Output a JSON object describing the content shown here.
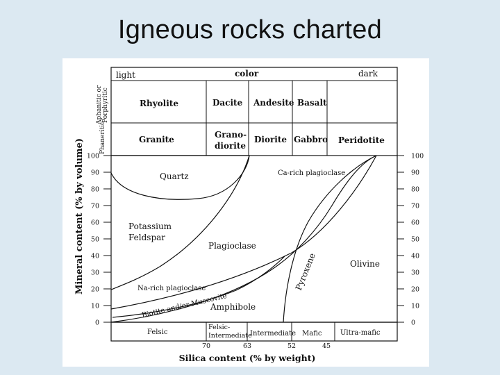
{
  "slide": {
    "title": "Igneous rocks charted"
  },
  "header": {
    "light": "light",
    "color": "color",
    "dark": "dark"
  },
  "texture_labels": {
    "aphanitic": "Aphanitic or",
    "porphyritic": "Porphyritic",
    "phaneritic": "Phaneritic"
  },
  "rocks": {
    "extrusive": [
      "Rhyolite",
      "Dacite",
      "Andesite",
      "Basalt"
    ],
    "intrusive": [
      "Granite",
      "Grano-",
      "diorite",
      "Diorite",
      "Gabbro",
      "Peridotite"
    ]
  },
  "axes": {
    "ylabel": "Mineral content   (% by volume)",
    "xlabel": "Silica content (% by weight)",
    "y_ticks": [
      "100",
      "90",
      "80",
      "70",
      "60",
      "50",
      "40",
      "30",
      "20",
      "10",
      "0"
    ],
    "x_ticks": [
      "70",
      "63",
      "52",
      "45"
    ]
  },
  "minerals": {
    "quartz": "Quartz",
    "ca_plag": "Ca-rich plagioclase",
    "potassium": "Potassium",
    "feldspar": "Feldspar",
    "plagioclase": "Plagioclase",
    "pyroxene": "Pyroxene",
    "olivine": "Olivine",
    "na_plag": "Na-rich plagioclase",
    "biotite": "Biotite and/or Muscovite",
    "amphibole": "Amphibole"
  },
  "categories": {
    "felsic": "Felsic",
    "felsic_int_1": "Felsic-",
    "felsic_int_2": "Intermediate",
    "intermediate": "Intermediate",
    "mafic": "Mafic",
    "ultramafic": "Ultra-mafic"
  }
}
